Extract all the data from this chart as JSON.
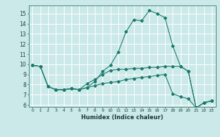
{
  "title": "",
  "xlabel": "Humidex (Indice chaleur)",
  "bg_color": "#cce9e9",
  "grid_color": "#ffffff",
  "line_color": "#1a7a6a",
  "xlim": [
    -0.5,
    23.5
  ],
  "ylim": [
    5.8,
    15.8
  ],
  "xticks": [
    0,
    1,
    2,
    3,
    4,
    5,
    6,
    7,
    8,
    9,
    10,
    11,
    12,
    13,
    14,
    15,
    16,
    17,
    18,
    19,
    20,
    21,
    22,
    23
  ],
  "yticks": [
    6,
    7,
    8,
    9,
    10,
    11,
    12,
    13,
    14,
    15
  ],
  "line1_x": [
    0,
    1,
    2,
    3,
    4,
    5,
    6,
    7,
    8,
    9,
    10,
    11,
    12,
    13,
    14,
    15,
    16,
    17,
    18,
    19,
    20,
    21,
    22,
    23
  ],
  "line1_y": [
    9.9,
    9.8,
    7.8,
    7.5,
    7.5,
    7.6,
    7.5,
    7.7,
    8.3,
    9.3,
    9.9,
    11.2,
    13.2,
    14.4,
    14.3,
    15.3,
    15.0,
    14.6,
    11.8,
    9.8,
    9.3,
    5.7,
    6.2,
    6.4
  ],
  "line2_x": [
    0,
    1,
    2,
    3,
    4,
    5,
    6,
    7,
    8,
    9,
    10,
    11,
    12,
    13,
    14,
    15,
    16,
    17,
    18,
    19,
    20,
    21,
    22,
    23
  ],
  "line2_y": [
    9.9,
    9.8,
    7.8,
    7.5,
    7.5,
    7.6,
    7.5,
    8.1,
    8.5,
    9.0,
    9.4,
    9.5,
    9.5,
    9.6,
    9.6,
    9.7,
    9.7,
    9.8,
    9.8,
    9.8,
    9.3,
    5.7,
    6.2,
    6.4
  ],
  "line3_x": [
    0,
    1,
    2,
    3,
    4,
    5,
    6,
    7,
    8,
    9,
    10,
    11,
    12,
    13,
    14,
    15,
    16,
    17,
    18,
    19,
    20,
    21,
    22,
    23
  ],
  "line3_y": [
    9.9,
    9.8,
    7.8,
    7.5,
    7.5,
    7.6,
    7.5,
    7.7,
    7.9,
    8.1,
    8.2,
    8.3,
    8.5,
    8.6,
    8.7,
    8.8,
    8.9,
    9.0,
    7.1,
    6.8,
    6.6,
    5.7,
    6.2,
    6.4
  ]
}
